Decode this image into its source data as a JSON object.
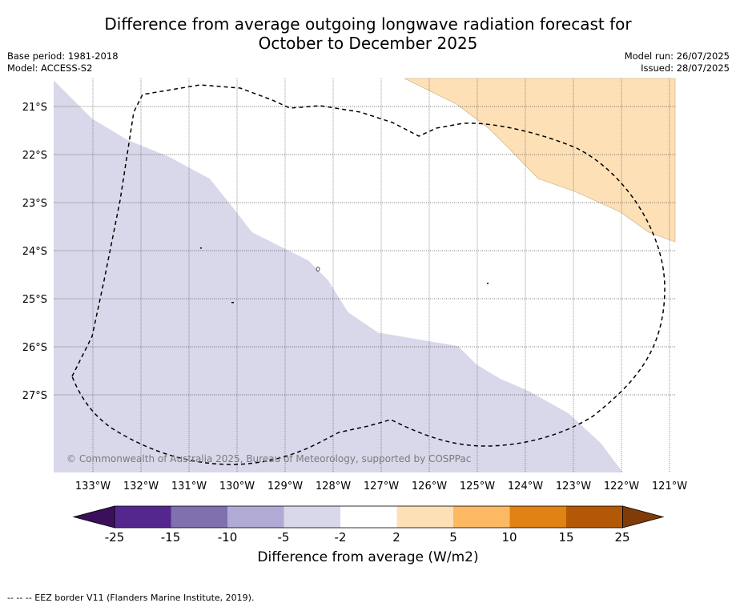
{
  "header": {
    "title_line1": "Difference from average outgoing longwave radiation forecast for",
    "title_line2": "October to December 2025",
    "base_period": "Base period: 1981-2018",
    "model": "Model: ACCESS-S2",
    "model_run": "Model run: 26/07/2025",
    "issued": "Issued: 28/07/2025"
  },
  "map": {
    "lon_labels": [
      "133°W",
      "132°W",
      "131°W",
      "130°W",
      "129°W",
      "128°W",
      "127°W",
      "126°W",
      "125°W",
      "124°W",
      "123°W",
      "122°W",
      "121°W"
    ],
    "lat_labels": [
      "21°S",
      "22°S",
      "23°S",
      "24°S",
      "25°S",
      "26°S",
      "27°S"
    ],
    "lon_range": [
      -133.8,
      -120.9
    ],
    "lat_range": [
      -28.6,
      -20.6
    ],
    "copyright": "© Commonwealth of Australia 2025, Bureau of Meteorology, supported by COSPPac",
    "regions": [
      {
        "category": "-5 to -2",
        "color": "#d8d8ea"
      },
      {
        "category": "2 to 5",
        "color": "#fde0b6"
      }
    ]
  },
  "colorbar": {
    "ticks": [
      "-25",
      "-15",
      "-10",
      "-5",
      "-2",
      "2",
      "5",
      "10",
      "15",
      "25"
    ],
    "colors": [
      "#3b0f5a",
      "#54278f",
      "#7f71ad",
      "#b1aad4",
      "#d8d8ea",
      "#ffffff",
      "#fde0b6",
      "#fdb863",
      "#e08214",
      "#b35806",
      "#7f3b08"
    ],
    "label": "Difference from average (W/m2)"
  },
  "footnote": "--  --  -- EEZ border V11 (Flanders Marine Institute, 2019)."
}
